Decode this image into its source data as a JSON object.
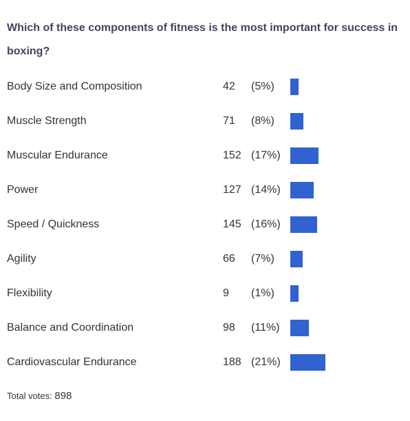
{
  "poll": {
    "question": "Which of these components of fitness is the most important for success in boxing?",
    "bar_color": "#3063cf",
    "options": [
      {
        "label": "Body Size and Composition",
        "votes": "42",
        "percent": "(5%)",
        "share": 0.047
      },
      {
        "label": "Muscle Strength",
        "votes": "71",
        "percent": "(8%)",
        "share": 0.079
      },
      {
        "label": "Muscular Endurance",
        "votes": "152",
        "percent": "(17%)",
        "share": 0.169
      },
      {
        "label": "Power",
        "votes": "127",
        "percent": "(14%)",
        "share": 0.141
      },
      {
        "label": "Speed / Quickness",
        "votes": "145",
        "percent": "(16%)",
        "share": 0.161
      },
      {
        "label": "Agility",
        "votes": "66",
        "percent": "(7%)",
        "share": 0.073
      },
      {
        "label": "Flexibility",
        "votes": "9",
        "percent": "(1%)",
        "share": 0.01
      },
      {
        "label": "Balance and Coordination",
        "votes": "98",
        "percent": "(11%)",
        "share": 0.109
      },
      {
        "label": "Cardiovascular Endurance",
        "votes": "188",
        "percent": "(21%)",
        "share": 0.209
      }
    ],
    "total_label": "Total votes:",
    "total_votes": "898"
  }
}
